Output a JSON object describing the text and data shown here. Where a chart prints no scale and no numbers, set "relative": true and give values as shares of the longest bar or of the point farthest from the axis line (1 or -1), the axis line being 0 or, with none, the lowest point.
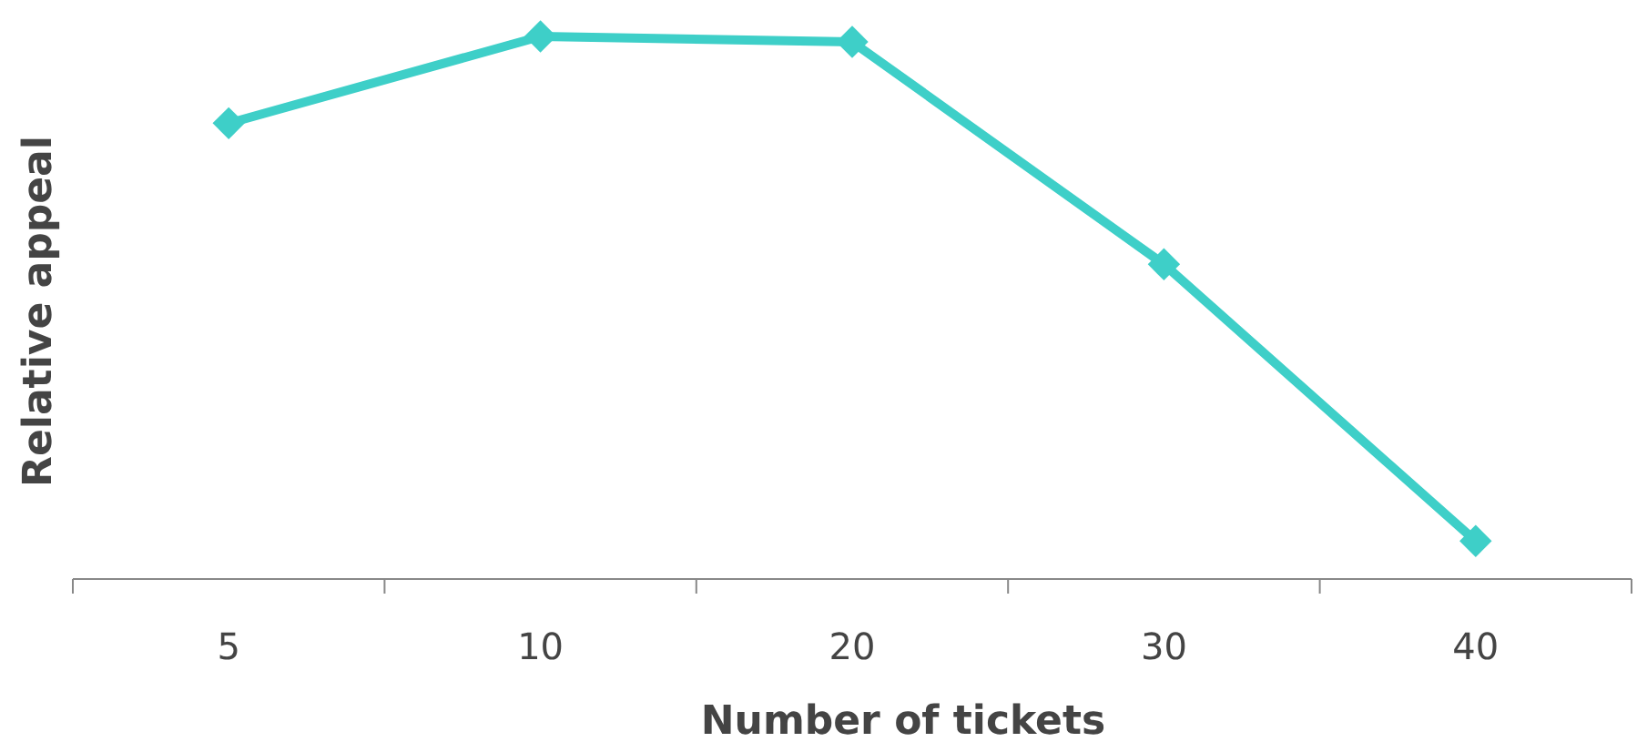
{
  "chart_data": {
    "type": "line",
    "relative": true,
    "xlabel": "Number of tickets",
    "ylabel": "Relative appeal",
    "categories": [
      "5",
      "10",
      "20",
      "30",
      "40"
    ],
    "series": [
      {
        "color": "#3ecfc8",
        "values": [
          0.84,
          1,
          0.99,
          0.58,
          0.07
        ]
      }
    ],
    "marker": "diamond",
    "line_style": "solid"
  }
}
